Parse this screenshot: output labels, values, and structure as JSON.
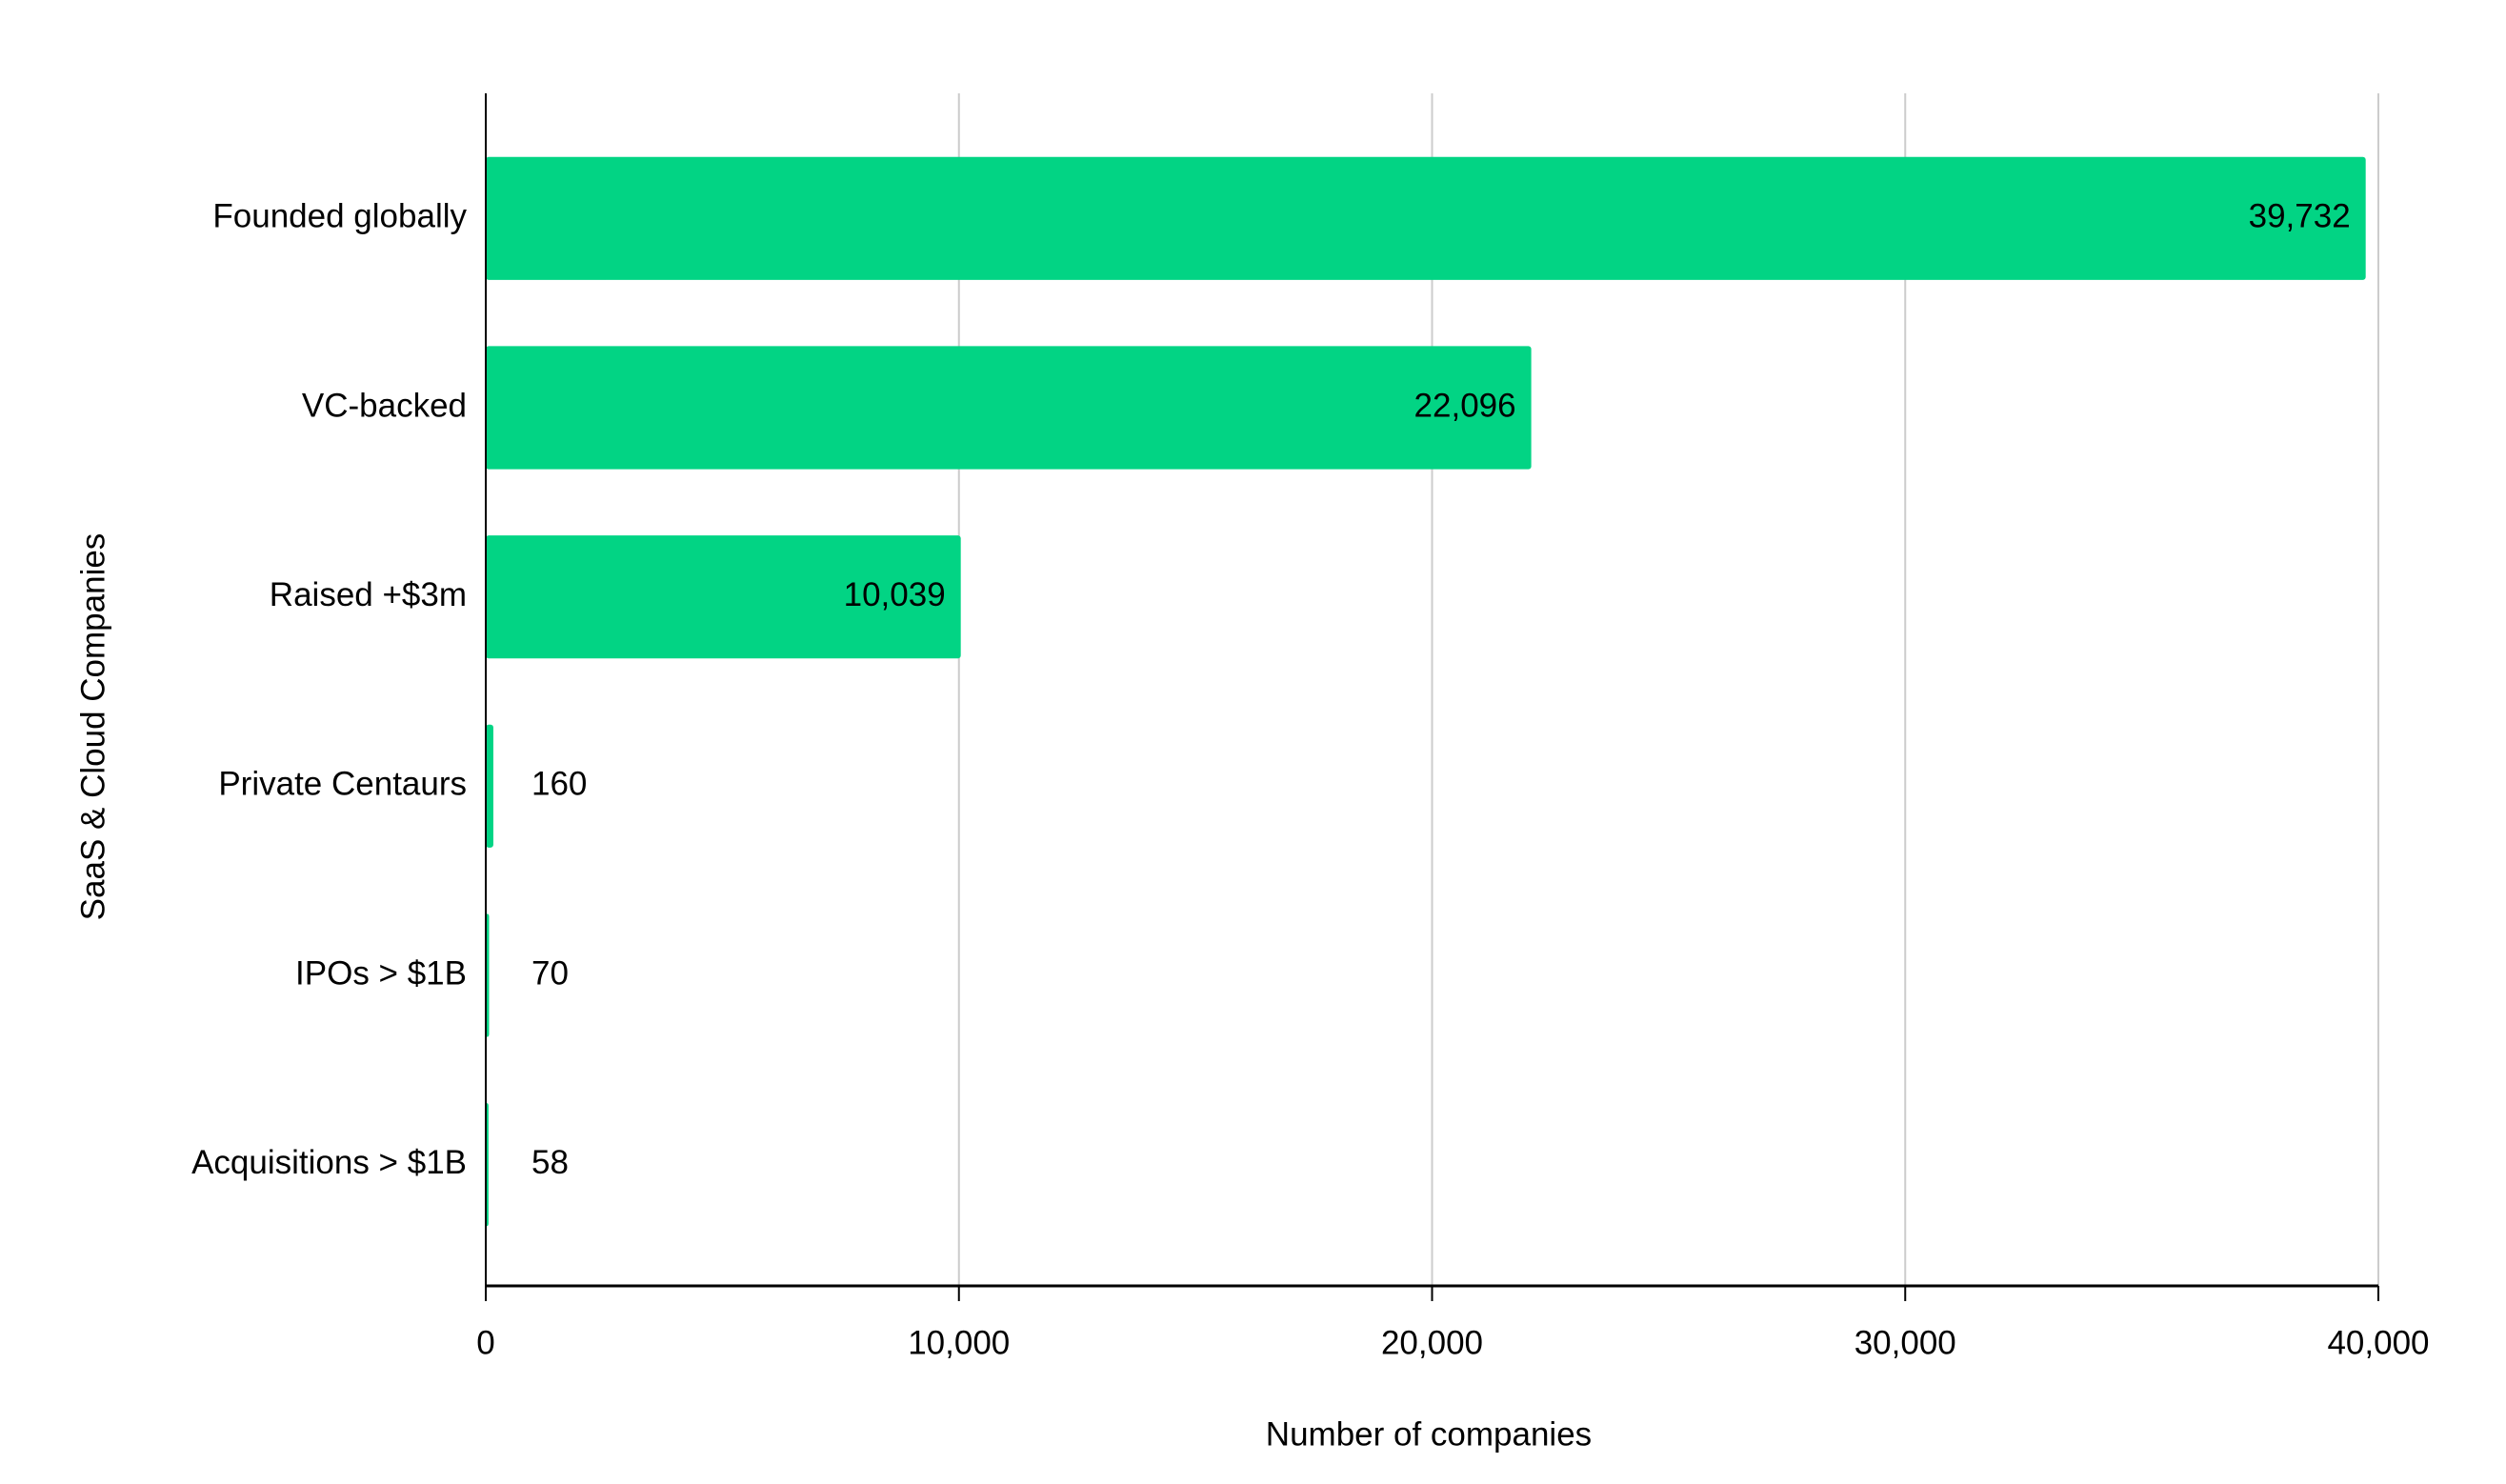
{
  "chart_data": {
    "type": "bar",
    "orientation": "horizontal",
    "x_label": "Number of companies",
    "y_label": "SaaS & Cloud Companies",
    "categories": [
      "Founded globally",
      "VC-backed",
      "Raised  +$3m",
      "Private Centaurs",
      "IPOs > $1B",
      "Acquisitions > $1B"
    ],
    "values": [
      39732,
      22096,
      10039,
      160,
      70,
      58
    ],
    "value_labels": [
      "39,732",
      "22,096",
      "10,039",
      "160",
      "70",
      "58"
    ],
    "color": "#02d484",
    "xlim": [
      0,
      40000
    ],
    "xticks": [
      0,
      {
        "value": 10000,
        "label": "10,000"
      },
      {
        "value": 20000,
        "label": "20,000"
      },
      {
        "value": 30000,
        "label": "30,000"
      },
      {
        "value": 40000,
        "label": "40,000"
      }
    ],
    "grid": true
  }
}
